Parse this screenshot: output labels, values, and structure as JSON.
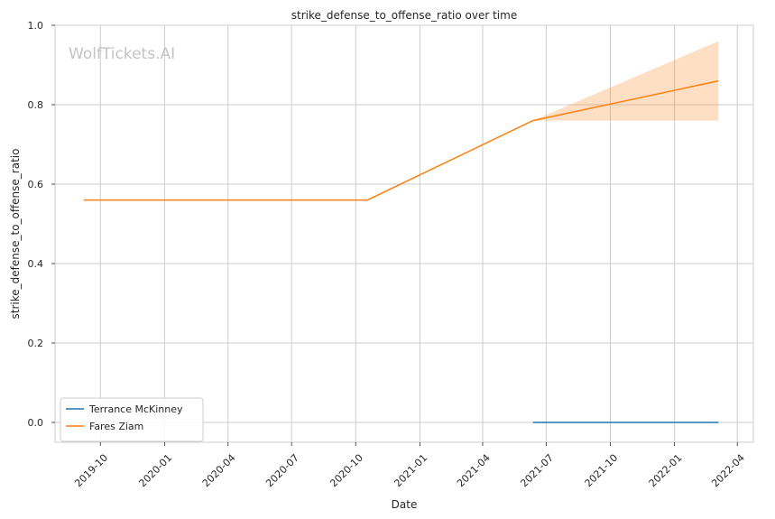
{
  "chart_data": {
    "type": "line",
    "title": "strike_defense_to_offense_ratio over time",
    "xlabel": "Date",
    "ylabel": "strike_defense_to_offense_ratio",
    "watermark": "WolfTickets.AI",
    "xlim": [
      "2019-07-28",
      "2022-04-24"
    ],
    "ylim": [
      -0.05,
      1.0
    ],
    "x_ticks": [
      "2019-10",
      "2020-01",
      "2020-04",
      "2020-07",
      "2020-10",
      "2021-01",
      "2021-04",
      "2021-07",
      "2021-10",
      "2022-01",
      "2022-04"
    ],
    "y_ticks": [
      "0.0",
      "0.2",
      "0.4",
      "0.6",
      "0.8",
      "1.0"
    ],
    "grid": true,
    "legend_position": "lower-left",
    "series": [
      {
        "name": "Terrance McKinney",
        "color": "#1f77b4",
        "points": [
          {
            "x": "2021-06-12",
            "y": 0.0
          },
          {
            "x": "2022-03-05",
            "y": 0.0
          }
        ]
      },
      {
        "name": "Fares Ziam",
        "color": "#ff7f0e",
        "points": [
          {
            "x": "2019-09-07",
            "y": 0.56
          },
          {
            "x": "2020-10-18",
            "y": 0.56
          },
          {
            "x": "2021-06-12",
            "y": 0.76
          },
          {
            "x": "2022-03-05",
            "y": 0.86
          }
        ],
        "band": [
          {
            "x": "2021-06-12",
            "low": 0.76,
            "high": 0.76
          },
          {
            "x": "2022-03-05",
            "low": 0.76,
            "high": 0.96
          }
        ]
      }
    ]
  }
}
